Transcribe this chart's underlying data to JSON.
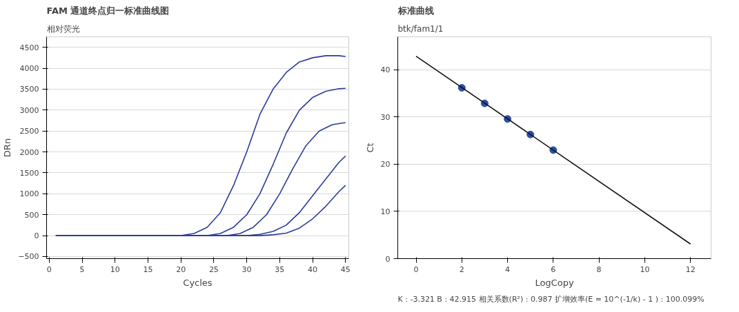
{
  "chart_data": [
    {
      "type": "line",
      "title": "FAM 通道终点归一标准曲线图",
      "subtitle": "相对荧光",
      "xlabel": "Cycles",
      "ylabel": "DRn",
      "xlim": [
        -0.4,
        45.5
      ],
      "ylim": [
        -550,
        4750
      ],
      "xticks": [
        0,
        5,
        10,
        15,
        20,
        25,
        30,
        35,
        40,
        45
      ],
      "yticks": [
        -500,
        0,
        500,
        1000,
        1500,
        2000,
        2500,
        3000,
        3500,
        4000,
        4500
      ],
      "grid": "y",
      "marker": "none",
      "line_style": "solid",
      "series": [
        {
          "color": "#2b3a9a",
          "x": [
            1,
            20,
            22,
            24,
            26,
            28,
            30,
            32,
            34,
            36,
            38,
            40,
            42,
            44,
            45
          ],
          "values": [
            0,
            0,
            50,
            200,
            550,
            1200,
            2000,
            2900,
            3500,
            3900,
            4150,
            4250,
            4300,
            4300,
            4280
          ]
        },
        {
          "color": "#2b3a9a",
          "x": [
            1,
            24,
            26,
            28,
            30,
            32,
            34,
            36,
            38,
            40,
            42,
            44,
            45
          ],
          "values": [
            0,
            0,
            50,
            200,
            500,
            1000,
            1700,
            2450,
            3000,
            3300,
            3450,
            3510,
            3520
          ]
        },
        {
          "color": "#2b3a9a",
          "x": [
            1,
            27,
            29,
            31,
            33,
            35,
            37,
            39,
            41,
            43,
            45
          ],
          "values": [
            0,
            0,
            50,
            200,
            500,
            1000,
            1600,
            2150,
            2500,
            2650,
            2700
          ]
        },
        {
          "color": "#2b3a9a",
          "x": [
            1,
            30,
            32,
            34,
            36,
            38,
            40,
            42,
            44,
            45
          ],
          "values": [
            0,
            0,
            30,
            100,
            250,
            550,
            950,
            1350,
            1750,
            1900
          ]
        },
        {
          "color": "#2b3a9a",
          "x": [
            1,
            32,
            34,
            36,
            38,
            40,
            42,
            44,
            45
          ],
          "values": [
            0,
            0,
            20,
            60,
            180,
            400,
            700,
            1050,
            1200
          ]
        }
      ]
    },
    {
      "type": "scatter",
      "title": "标准曲线",
      "subtitle": "btk/fam1/1",
      "xlabel": "LogCopy",
      "ylabel": "Ct",
      "xlim": [
        -0.8,
        12.9
      ],
      "ylim": [
        0,
        47
      ],
      "xticks": [
        0,
        2,
        4,
        6,
        8,
        10,
        12
      ],
      "yticks": [
        0,
        10,
        20,
        30,
        40
      ],
      "grid": "y",
      "marker": "circle",
      "annotations": [
        "K : -3.321    B : 42.915    相关系数(R²) : 0.987    扩增效率(E = 10^(-1/k) - 1 ) : 100.099%"
      ],
      "series": [
        {
          "type": "scatter",
          "color": "#2a4fa8",
          "x": [
            2,
            3,
            4,
            5,
            6
          ],
          "values": [
            36.2,
            32.9,
            29.6,
            26.3,
            23.0
          ]
        },
        {
          "type": "line",
          "marker": "none",
          "color": "#111111",
          "x": [
            0,
            12
          ],
          "values": [
            42.9,
            3.1
          ]
        }
      ]
    }
  ]
}
